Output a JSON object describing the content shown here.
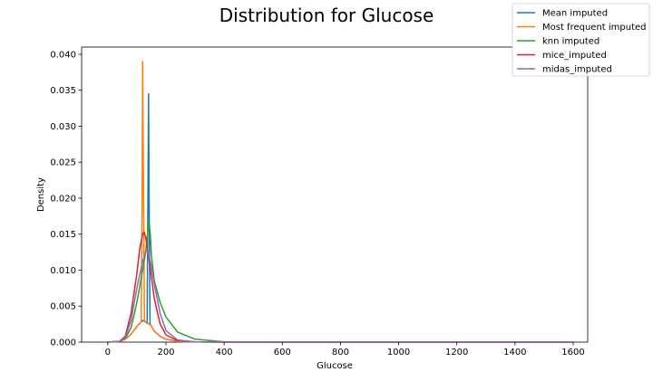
{
  "chart_data": {
    "type": "line",
    "title": "Distribution for Glucose",
    "xlabel": "Glucose",
    "ylabel": "Density",
    "xlim": [
      -90,
      1650
    ],
    "ylim": [
      0,
      0.041
    ],
    "xticks": [
      0,
      200,
      400,
      600,
      800,
      1000,
      1200,
      1400,
      1600
    ],
    "yticks": [
      0.0,
      0.005,
      0.01,
      0.015,
      0.02,
      0.025,
      0.03,
      0.035,
      0.04
    ],
    "grid": false,
    "legend_position": "top-right",
    "series": [
      {
        "name": "Mean imputed",
        "color": "#1f77b4",
        "x": [
          0,
          40,
          60,
          80,
          100,
          120,
          130,
          135,
          138,
          140,
          142,
          145,
          150,
          160,
          180,
          200,
          240,
          300,
          400,
          600,
          800,
          1000,
          1200,
          1400,
          1600
        ],
        "y": [
          0,
          0.0001,
          0.0004,
          0.0011,
          0.0022,
          0.003,
          0.0028,
          0.0026,
          0.02,
          0.0345,
          0.02,
          0.0025,
          0.0022,
          0.0015,
          0.0008,
          0.0004,
          0.0001,
          3e-05,
          0,
          0,
          0,
          0,
          0,
          0,
          0
        ]
      },
      {
        "name": "Most frequent imputed",
        "color": "#ff7f0e",
        "x": [
          0,
          40,
          60,
          80,
          100,
          115,
          118,
          120,
          123,
          126,
          130,
          140,
          150,
          160,
          180,
          200,
          240,
          300,
          400,
          600,
          800,
          1000,
          1200,
          1400,
          1600
        ],
        "y": [
          0,
          0.0001,
          0.0004,
          0.0011,
          0.0022,
          0.0028,
          0.02,
          0.039,
          0.02,
          0.003,
          0.0028,
          0.0026,
          0.0022,
          0.0015,
          0.0008,
          0.0004,
          0.0001,
          3e-05,
          0,
          0,
          0,
          0,
          0,
          0,
          0
        ]
      },
      {
        "name": "knn imputed",
        "color": "#2ca02c",
        "x": [
          0,
          40,
          60,
          80,
          100,
          120,
          130,
          138,
          142,
          146,
          150,
          160,
          180,
          200,
          240,
          300,
          400,
          600,
          800,
          1000,
          1200,
          1400,
          1600
        ],
        "y": [
          0,
          0.0001,
          0.0005,
          0.002,
          0.0055,
          0.01,
          0.0125,
          0.0155,
          0.0167,
          0.015,
          0.012,
          0.0085,
          0.0055,
          0.0035,
          0.0014,
          0.0004,
          5e-05,
          0,
          0,
          0,
          0,
          0,
          0
        ]
      },
      {
        "name": "mice_imputed",
        "color": "#d62728",
        "x": [
          0,
          40,
          60,
          80,
          100,
          110,
          120,
          125,
          130,
          140,
          150,
          160,
          180,
          200,
          240,
          300,
          400,
          600,
          800,
          1000,
          1200,
          1400,
          1600
        ],
        "y": [
          0,
          0.0001,
          0.0008,
          0.004,
          0.0095,
          0.013,
          0.015,
          0.0153,
          0.0146,
          0.012,
          0.009,
          0.006,
          0.0025,
          0.001,
          0.0002,
          3e-05,
          0,
          0,
          0,
          0,
          0,
          0,
          0
        ]
      },
      {
        "name": "midas_imputed",
        "color": "#9467bd",
        "x": [
          0,
          40,
          60,
          80,
          100,
          120,
          130,
          135,
          140,
          150,
          160,
          180,
          200,
          240,
          300,
          400,
          600,
          800,
          1000,
          1200,
          1400,
          1600
        ],
        "y": [
          0,
          0.0001,
          0.0006,
          0.003,
          0.0075,
          0.0112,
          0.0125,
          0.0127,
          0.0123,
          0.0105,
          0.008,
          0.004,
          0.0016,
          0.0003,
          4e-05,
          0,
          0,
          0,
          0,
          0,
          0,
          0
        ]
      }
    ]
  }
}
